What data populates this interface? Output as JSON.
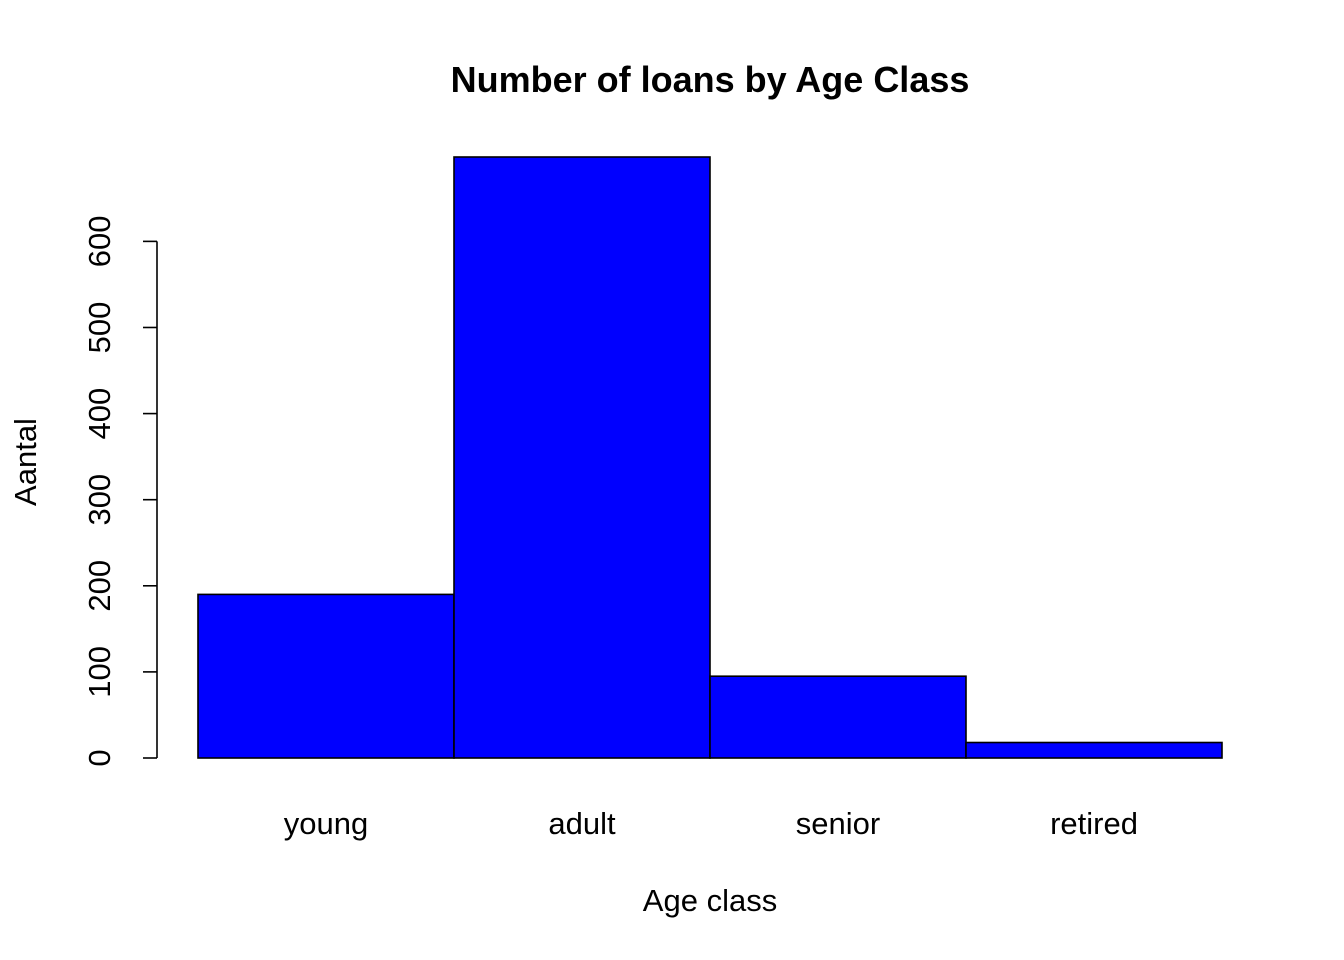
{
  "chart_data": {
    "type": "bar",
    "title": "Number of loans by Age Class",
    "xlabel": "Age class",
    "ylabel": "Aantal",
    "categories": [
      "young",
      "adult",
      "senior",
      "retired"
    ],
    "values": [
      190,
      698,
      95,
      18
    ],
    "yticks": [
      "0",
      "100",
      "200",
      "300",
      "400",
      "500",
      "600"
    ],
    "ytick_values": [
      0,
      100,
      200,
      300,
      400,
      500,
      600
    ],
    "ylim": [
      0,
      698
    ],
    "bar_color": "#0000ff",
    "bar_border_color": "#000000",
    "grid": false,
    "legend": "none"
  }
}
